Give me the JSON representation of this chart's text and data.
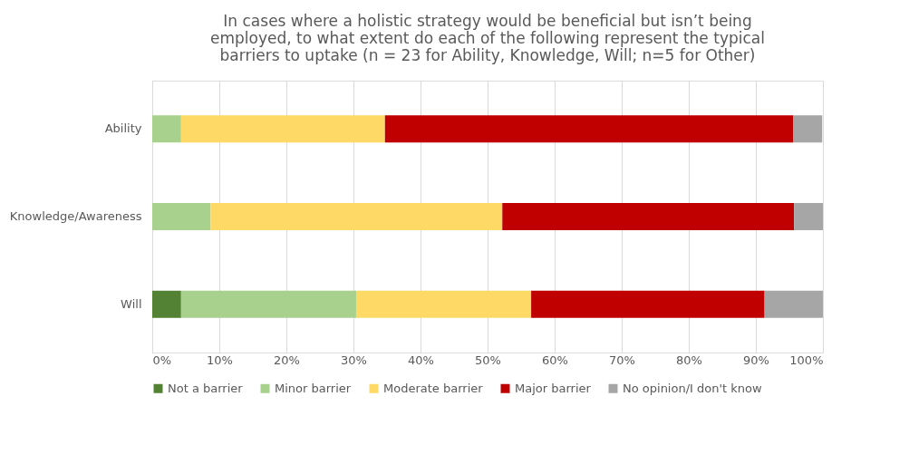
{
  "chart_data": {
    "type": "bar",
    "orientation": "horizontal",
    "stacked": true,
    "title": "In cases where a holistic strategy would be beneficial but isn’t being employed, to what extent do each of the following represent the typical barriers to uptake (n = 23 for Ability, Knowledge, Will; n=5 for Other)",
    "categories": [
      "Ability",
      "Knowledge/Awareness",
      "Will"
    ],
    "series": [
      {
        "name": "Not a barrier",
        "color": "#548235",
        "values": [
          0,
          0,
          4.3
        ]
      },
      {
        "name": "Minor barrier",
        "color": "#a9d18e",
        "values": [
          4.3,
          8.7,
          26.1
        ]
      },
      {
        "name": "Moderate barrier",
        "color": "#ffd966",
        "values": [
          30.4,
          43.5,
          26.1
        ]
      },
      {
        "name": "Major barrier",
        "color": "#c00000",
        "values": [
          60.9,
          43.5,
          34.8
        ]
      },
      {
        "name": "No opinion/I don't know",
        "color": "#a6a6a6",
        "values": [
          4.3,
          4.3,
          8.7
        ]
      }
    ],
    "xlim": [
      0,
      100
    ],
    "xticks": [
      {
        "value": 0,
        "label": "0%"
      },
      {
        "value": 10,
        "label": "10%"
      },
      {
        "value": 20,
        "label": "20%"
      },
      {
        "value": 30,
        "label": "30%"
      },
      {
        "value": 40,
        "label": "40%"
      },
      {
        "value": 50,
        "label": "50%"
      },
      {
        "value": 60,
        "label": "60%"
      },
      {
        "value": 70,
        "label": "70%"
      },
      {
        "value": 80,
        "label": "80%"
      },
      {
        "value": 90,
        "label": "90%"
      },
      {
        "value": 100,
        "label": "100%"
      }
    ],
    "grid": "x",
    "legend": "bottom"
  }
}
